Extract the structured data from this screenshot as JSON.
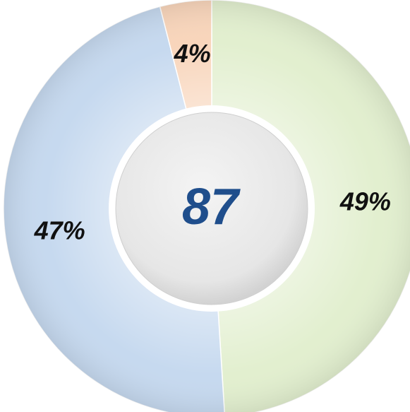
{
  "chart_data": {
    "type": "donut",
    "values": [
      49,
      47,
      4
    ],
    "value_labels": [
      "49%",
      "47%",
      "4%"
    ],
    "colors": [
      "#e2efcf",
      "#c6d9ef",
      "#f8d5bb"
    ],
    "center_value": 87
  }
}
